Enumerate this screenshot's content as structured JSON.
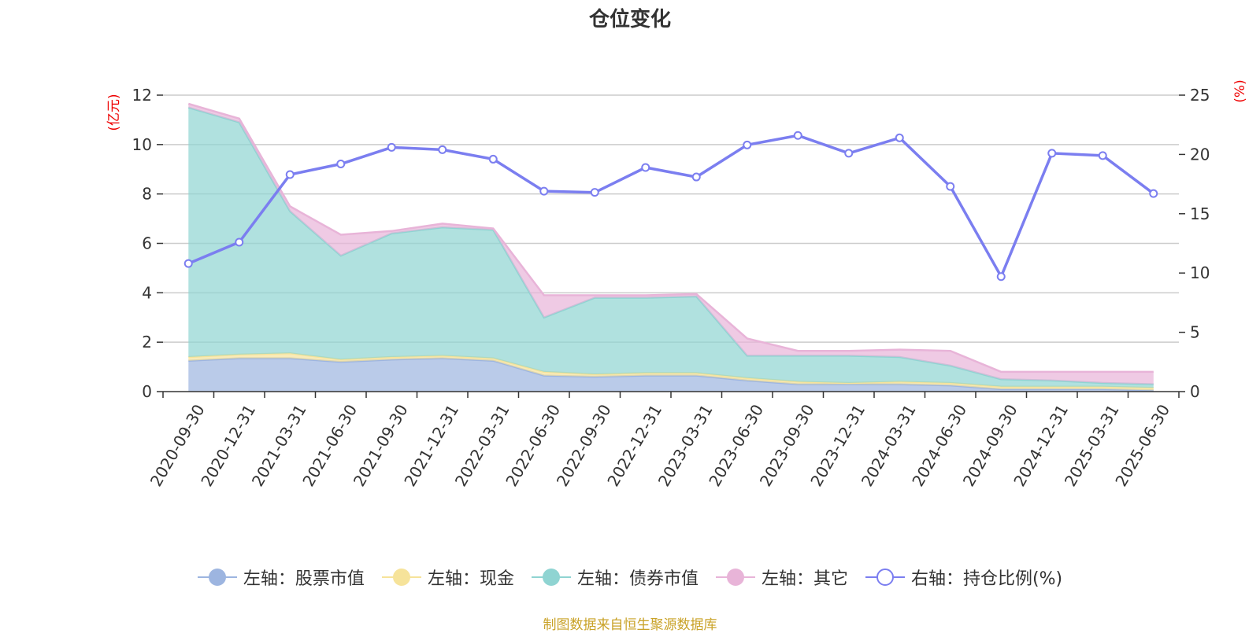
{
  "title": "仓位变化",
  "source_note": "制图数据来自恒生聚源数据库",
  "left_axis_unit": "(亿元)",
  "right_axis_unit": "(%)",
  "chart_data": {
    "type": "area",
    "title": "仓位变化",
    "x": [
      "2020-09-30",
      "2020-12-31",
      "2021-03-31",
      "2021-06-30",
      "2021-09-30",
      "2021-12-31",
      "2022-03-31",
      "2022-06-30",
      "2022-09-30",
      "2022-12-31",
      "2023-03-31",
      "2023-06-30",
      "2023-09-30",
      "2023-12-31",
      "2024-03-31",
      "2024-06-30",
      "2024-09-30",
      "2024-12-31",
      "2025-03-31",
      "2025-06-30"
    ],
    "left_axis": {
      "unit": "(亿元)",
      "ylim": [
        0,
        12
      ],
      "ticks": [
        0,
        2,
        4,
        6,
        8,
        10,
        12
      ]
    },
    "right_axis": {
      "unit": "(%)",
      "ylim": [
        0,
        25
      ],
      "ticks": [
        0,
        5,
        10,
        15,
        20,
        25
      ]
    },
    "stacked": true,
    "grid": true,
    "legend_position": "bottom",
    "series": [
      {
        "name": "左轴：股票市值",
        "axis": "left",
        "type": "area",
        "color": "#9db5e0",
        "values": [
          1.25,
          1.35,
          1.35,
          1.2,
          1.3,
          1.35,
          1.25,
          0.65,
          0.6,
          0.65,
          0.65,
          0.45,
          0.3,
          0.3,
          0.3,
          0.25,
          0.1,
          0.1,
          0.1,
          0.05
        ]
      },
      {
        "name": "左轴：现金",
        "axis": "left",
        "type": "area",
        "color": "#f6e39a",
        "values": [
          0.15,
          0.15,
          0.2,
          0.1,
          0.1,
          0.1,
          0.1,
          0.15,
          0.1,
          0.1,
          0.1,
          0.1,
          0.1,
          0.05,
          0.1,
          0.1,
          0.1,
          0.1,
          0.1,
          0.1
        ]
      },
      {
        "name": "左轴：债券市值",
        "axis": "left",
        "type": "area",
        "color": "#8fd4d2",
        "values": [
          10.1,
          9.4,
          5.75,
          4.2,
          5.0,
          5.2,
          5.2,
          2.2,
          3.1,
          3.05,
          3.1,
          0.9,
          1.05,
          1.1,
          1.0,
          0.7,
          0.3,
          0.25,
          0.15,
          0.15
        ]
      },
      {
        "name": "左轴：其它",
        "axis": "left",
        "type": "area",
        "color": "#e8b4d8",
        "values": [
          0.15,
          0.15,
          0.2,
          0.85,
          0.1,
          0.15,
          0.05,
          0.9,
          0.1,
          0.1,
          0.1,
          0.7,
          0.2,
          0.2,
          0.3,
          0.6,
          0.3,
          0.35,
          0.45,
          0.5
        ]
      },
      {
        "name": "右轴：持仓比例(%)",
        "axis": "right",
        "type": "line",
        "color": "#7b7ef0",
        "values": [
          10.8,
          12.6,
          18.3,
          19.2,
          20.6,
          20.4,
          19.6,
          16.9,
          16.8,
          18.9,
          18.1,
          20.8,
          21.6,
          20.1,
          21.4,
          17.3,
          9.7,
          20.1,
          19.9,
          16.7
        ]
      }
    ]
  }
}
